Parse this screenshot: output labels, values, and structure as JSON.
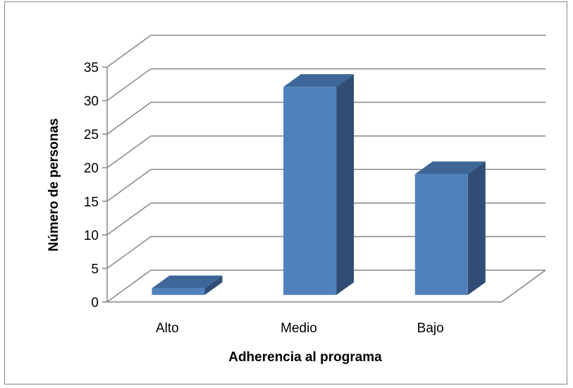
{
  "chart_data": {
    "type": "bar",
    "style": "3d-column",
    "title": "",
    "xlabel": "Adherencia al programa",
    "ylabel": "Número de personas",
    "categories": [
      "Alto",
      "Medio",
      "Bajo"
    ],
    "values": [
      1,
      31,
      18
    ],
    "ylim": [
      0,
      35
    ],
    "yticks": [
      "0",
      "5",
      "10",
      "15",
      "20",
      "25",
      "30",
      "35"
    ],
    "grid": true,
    "legend": "none",
    "colors": {
      "bar_front": "#4F81BD",
      "bar_top": "#3D6798",
      "bar_side": "#304E75",
      "grid": "#868686"
    }
  }
}
